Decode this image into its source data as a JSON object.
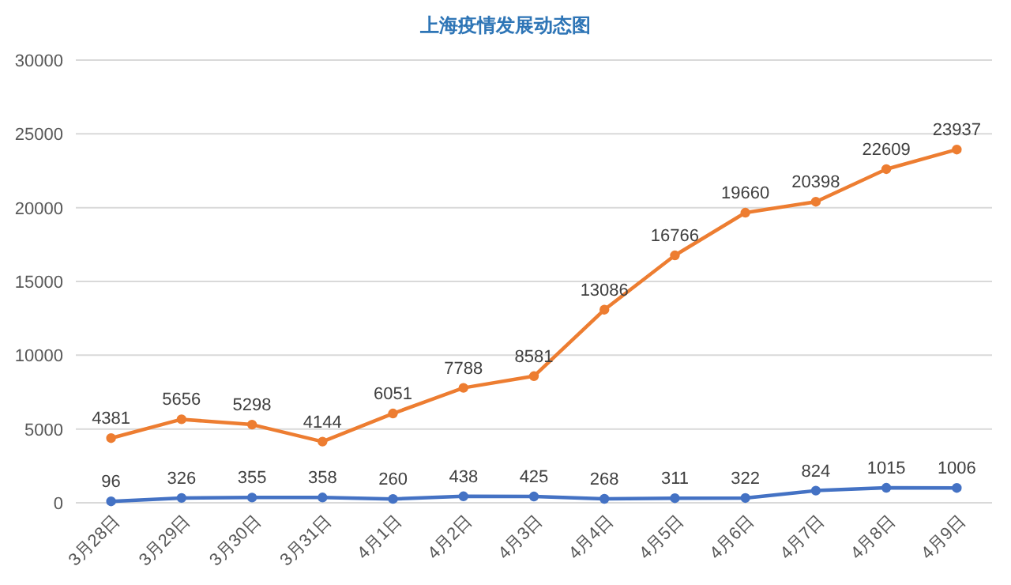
{
  "chart_data": {
    "type": "line",
    "title": "上海疫情发展动态图",
    "categories": [
      "3月28日",
      "3月29日",
      "3月30日",
      "3月31日",
      "4月1日",
      "4月2日",
      "4月3日",
      "4月4日",
      "4月5日",
      "4月6日",
      "4月7日",
      "4月8日",
      "4月9日"
    ],
    "series": [
      {
        "color": "#ed7d31",
        "values": [
          4381,
          5656,
          5298,
          4144,
          6051,
          7788,
          8581,
          13086,
          16766,
          19660,
          20398,
          22609,
          23937
        ]
      },
      {
        "color": "#4472c4",
        "values": [
          96,
          326,
          355,
          358,
          260,
          438,
          425,
          268,
          311,
          322,
          824,
          1015,
          1006
        ]
      }
    ],
    "ylim": [
      0,
      30000
    ],
    "yticks": [
      0,
      5000,
      10000,
      15000,
      20000,
      25000,
      30000
    ],
    "grid": "y",
    "marker": "circle",
    "line_style": "solid",
    "data_labels": true
  }
}
